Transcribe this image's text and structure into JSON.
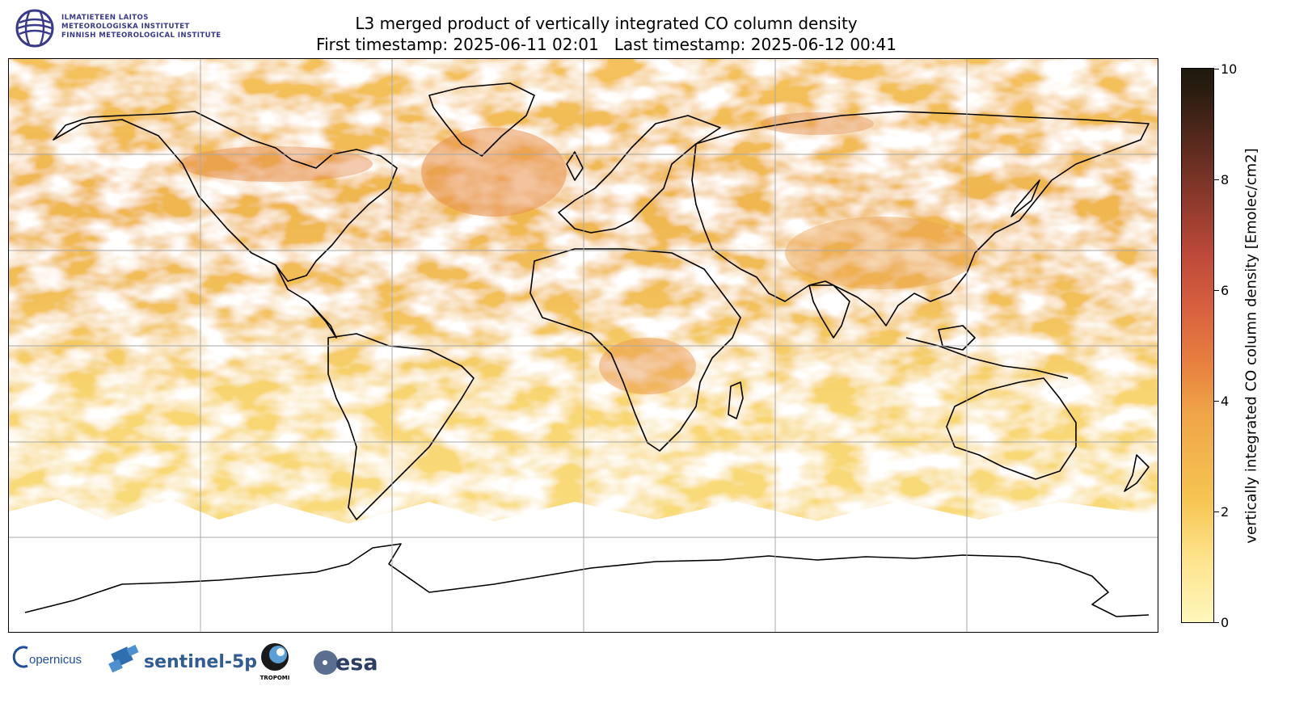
{
  "header": {
    "title_line1": "L3 merged product of vertically integrated CO column density",
    "title_line2": "First timestamp: 2025-06-11 02:01   Last timestamp: 2025-06-12 00:41"
  },
  "institute_logo": {
    "lines": [
      "ILMATIETEEN LAITOS",
      "METEOROLOGISKA INSTITUTET",
      "FINNISH METEOROLOGICAL INSTITUTE"
    ],
    "color": "#3a3a8c"
  },
  "colorbar": {
    "label": "vertically integrated CO column density [Emolec/cm2]",
    "min": 0,
    "max": 10,
    "ticks": [
      "0",
      "2",
      "4",
      "6",
      "8",
      "10"
    ],
    "colormap": [
      "#fff7bc",
      "#f6c552",
      "#e8833f",
      "#bf4a3a",
      "#5b2b1e",
      "#1e1a0d"
    ]
  },
  "map": {
    "projection": "plate carree",
    "gridlines": true,
    "coastlines": true
  },
  "footer_logos": {
    "copernicus": "opernicus",
    "sentinel": "sentinel-5p",
    "tropomi": "TROPOMI",
    "esa": "esa"
  }
}
